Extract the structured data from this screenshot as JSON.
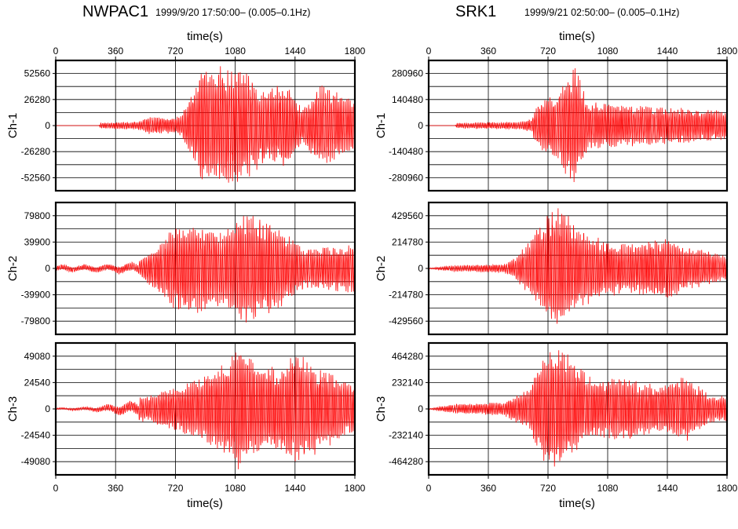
{
  "colors": {
    "trace": "#ff0000",
    "grid": "#000000",
    "frame": "#000000",
    "background": "#ffffff"
  },
  "chart_data": [
    {
      "type": "line",
      "station": "NWPAC1",
      "subtitle": "1999/9/20 17:50:00– (0.005–0.1Hz)",
      "xlabel_top": "time(s)",
      "xlabel_bottom": "time(s)",
      "xlim": [
        0,
        1800
      ],
      "xticks": [
        0,
        360,
        720,
        1080,
        1440,
        1800
      ],
      "grid": true,
      "panels": [
        {
          "ylabel": "Ch-1",
          "yticks": [
            52560,
            26280,
            0,
            -26280,
            -52560
          ],
          "ylim": [
            -65700,
            65700
          ],
          "onset": 260,
          "envelope": [
            [
              0,
              0
            ],
            [
              260,
              0
            ],
            [
              270,
              3000
            ],
            [
              500,
              4000
            ],
            [
              560,
              9000
            ],
            [
              660,
              8000
            ],
            [
              760,
              11000
            ],
            [
              870,
              55000
            ],
            [
              1000,
              62000
            ],
            [
              1150,
              55000
            ],
            [
              1250,
              38000
            ],
            [
              1400,
              44000
            ],
            [
              1480,
              18000
            ],
            [
              1600,
              42000
            ],
            [
              1800,
              24000
            ]
          ]
        },
        {
          "ylabel": "Ch-2",
          "yticks": [
            79800,
            39900,
            0,
            -39900,
            -79800
          ],
          "ylim": [
            -99750,
            99750
          ],
          "onset": 0,
          "envelope": [
            [
              0,
              8000
            ],
            [
              300,
              9000
            ],
            [
              500,
              14000
            ],
            [
              600,
              32000
            ],
            [
              740,
              70000
            ],
            [
              800,
              72000
            ],
            [
              1000,
              58000
            ],
            [
              1150,
              88000
            ],
            [
              1300,
              70000
            ],
            [
              1500,
              30000
            ],
            [
              1800,
              38000
            ]
          ]
        },
        {
          "ylabel": "Ch-3",
          "yticks": [
            49080,
            24540,
            0,
            -24540,
            -49080
          ],
          "ylim": [
            -61350,
            61350
          ],
          "onset": 0,
          "envelope": [
            [
              0,
              1500
            ],
            [
              200,
              3000
            ],
            [
              400,
              9000
            ],
            [
              600,
              14000
            ],
            [
              800,
              25000
            ],
            [
              1000,
              42000
            ],
            [
              1100,
              58000
            ],
            [
              1200,
              46000
            ],
            [
              1300,
              40000
            ],
            [
              1450,
              52000
            ],
            [
              1600,
              40000
            ],
            [
              1800,
              22000
            ]
          ]
        }
      ]
    },
    {
      "type": "line",
      "station": "SRK1",
      "subtitle": "1999/9/21 02:50:00– (0.005–0.1Hz)",
      "xlabel_top": "time(s)",
      "xlabel_bottom": "time(s)",
      "xlim": [
        0,
        1800
      ],
      "xticks": [
        0,
        360,
        720,
        1080,
        1440,
        1800
      ],
      "grid": true,
      "panels": [
        {
          "ylabel": "Ch-1",
          "yticks": [
            280960,
            140480,
            0,
            -140480,
            -280960
          ],
          "ylim": [
            -351200,
            351200
          ],
          "onset": 160,
          "envelope": [
            [
              0,
              0
            ],
            [
              160,
              0
            ],
            [
              170,
              15000
            ],
            [
              560,
              22000
            ],
            [
              620,
              40000
            ],
            [
              660,
              130000
            ],
            [
              760,
              170000
            ],
            [
              880,
              340000
            ],
            [
              960,
              130000
            ],
            [
              1100,
              120000
            ],
            [
              1300,
              110000
            ],
            [
              1800,
              80000
            ]
          ]
        },
        {
          "ylabel": "Ch-2",
          "yticks": [
            429560,
            214780,
            0,
            -214780,
            -429560
          ],
          "ylim": [
            -536950,
            536950
          ],
          "onset": 0,
          "envelope": [
            [
              0,
              3000
            ],
            [
              150,
              25000
            ],
            [
              450,
              35000
            ],
            [
              520,
              80000
            ],
            [
              600,
              220000
            ],
            [
              700,
              430000
            ],
            [
              780,
              520000
            ],
            [
              900,
              360000
            ],
            [
              1000,
              260000
            ],
            [
              1200,
              200000
            ],
            [
              1450,
              270000
            ],
            [
              1550,
              180000
            ],
            [
              1800,
              110000
            ]
          ]
        },
        {
          "ylabel": "Ch-3",
          "yticks": [
            464280,
            232140,
            0,
            -232140,
            -464280
          ],
          "ylim": [
            -580350,
            580350
          ],
          "onset": 0,
          "envelope": [
            [
              0,
              3000
            ],
            [
              150,
              40000
            ],
            [
              450,
              60000
            ],
            [
              600,
              180000
            ],
            [
              700,
              480000
            ],
            [
              800,
              560000
            ],
            [
              900,
              380000
            ],
            [
              1000,
              260000
            ],
            [
              1200,
              280000
            ],
            [
              1400,
              200000
            ],
            [
              1550,
              300000
            ],
            [
              1700,
              120000
            ],
            [
              1800,
              120000
            ]
          ]
        }
      ]
    }
  ]
}
